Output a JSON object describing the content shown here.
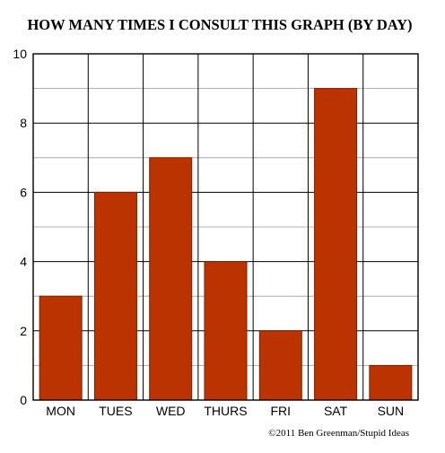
{
  "chart_data": {
    "type": "bar",
    "title": "HOW MANY TIMES I CONSULT THIS GRAPH (BY DAY)",
    "xlabel": "",
    "ylabel": "",
    "categories": [
      "MON",
      "TUES",
      "WED",
      "THURS",
      "FRI",
      "SAT",
      "SUN"
    ],
    "values": [
      3,
      6,
      7,
      4,
      2,
      9,
      1
    ],
    "ylim": [
      0,
      10
    ],
    "yticks": [
      0,
      2,
      4,
      6,
      8,
      10
    ],
    "grid": true,
    "legend": "none",
    "bar_color": "#bb3300",
    "bar_edge_color": "#7a1f00",
    "gridline_color": "#000000",
    "credit": "©2011 Ben Greenman/Stupid Ideas"
  }
}
